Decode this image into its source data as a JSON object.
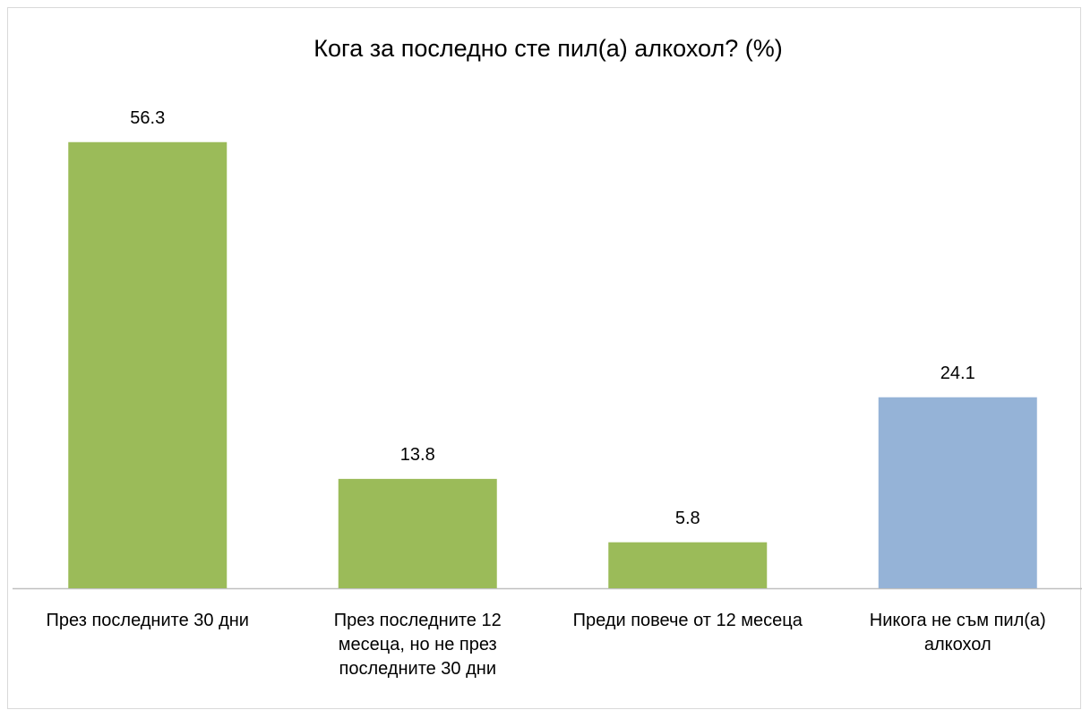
{
  "chart_data": {
    "type": "bar",
    "title": "Кога за последно сте пил(а) алкохол? (%)",
    "categories": [
      "През последните 30 дни",
      "През последните 12 месеца, но не през последните 30 дни",
      "Преди повече от 12 месеца",
      "Никога не съм пил(а) алкохол"
    ],
    "values": [
      56.3,
      13.8,
      5.8,
      24.1
    ],
    "colors": [
      "#9bbb59",
      "#9bbb59",
      "#9bbb59",
      "#95b3d7"
    ],
    "ylim": [
      0,
      60
    ]
  }
}
